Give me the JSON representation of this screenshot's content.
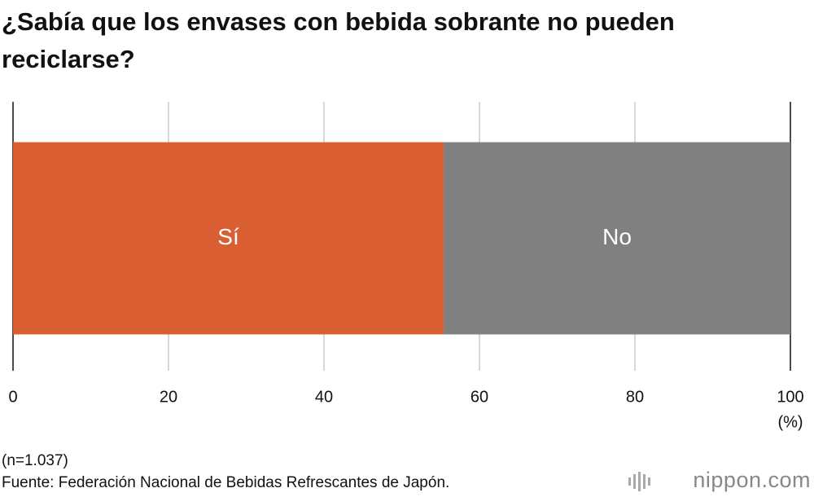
{
  "chart_data": {
    "type": "bar",
    "orientation": "horizontal",
    "stacked": true,
    "title": "¿Sabía que los envases con bebida sobrante no pueden reciclarse?",
    "categories": [
      null
    ],
    "series": [
      {
        "name": "Sí",
        "color": "#d95f33",
        "values": [
          55.4
        ]
      },
      {
        "name": "No",
        "color": "#808080",
        "values": [
          44.6
        ]
      }
    ],
    "xlim": [
      0,
      100
    ],
    "xticks": [
      0,
      20,
      40,
      60,
      80,
      100
    ],
    "x_label": "(%)",
    "grid": true,
    "notes": [
      "(n=1.037)",
      "Fuente: Federación Nacional de Bebidas Refrescantes de Japón."
    ],
    "brand": "nippon.com"
  }
}
